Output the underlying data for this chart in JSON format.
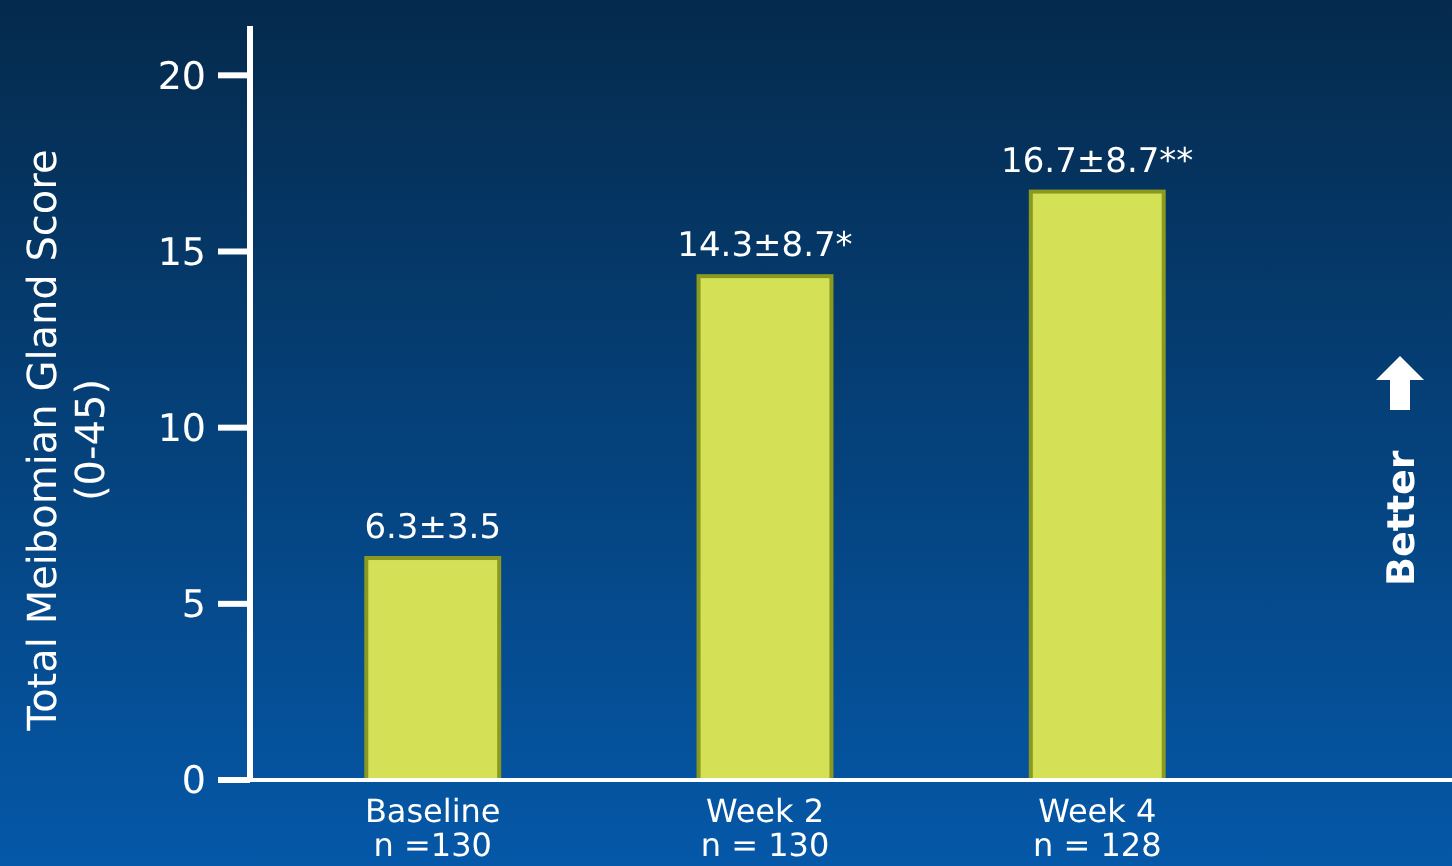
{
  "chart_data": {
    "type": "bar",
    "ylabel": "Total Meibomian Gland Score\n(0-45)",
    "categories": [
      "Baseline\nn =130",
      "Week 2\nn = 130",
      "Week 4\nn = 128"
    ],
    "values": [
      6.3,
      14.3,
      16.7
    ],
    "value_labels": [
      "6.3±3.5",
      "14.3±8.7*",
      "16.7±8.7**"
    ],
    "color": "#d4e157",
    "ylim": [
      0,
      21.4
    ],
    "yticks": [
      0,
      5,
      10,
      15,
      20
    ],
    "annotations": [
      "Better"
    ]
  }
}
